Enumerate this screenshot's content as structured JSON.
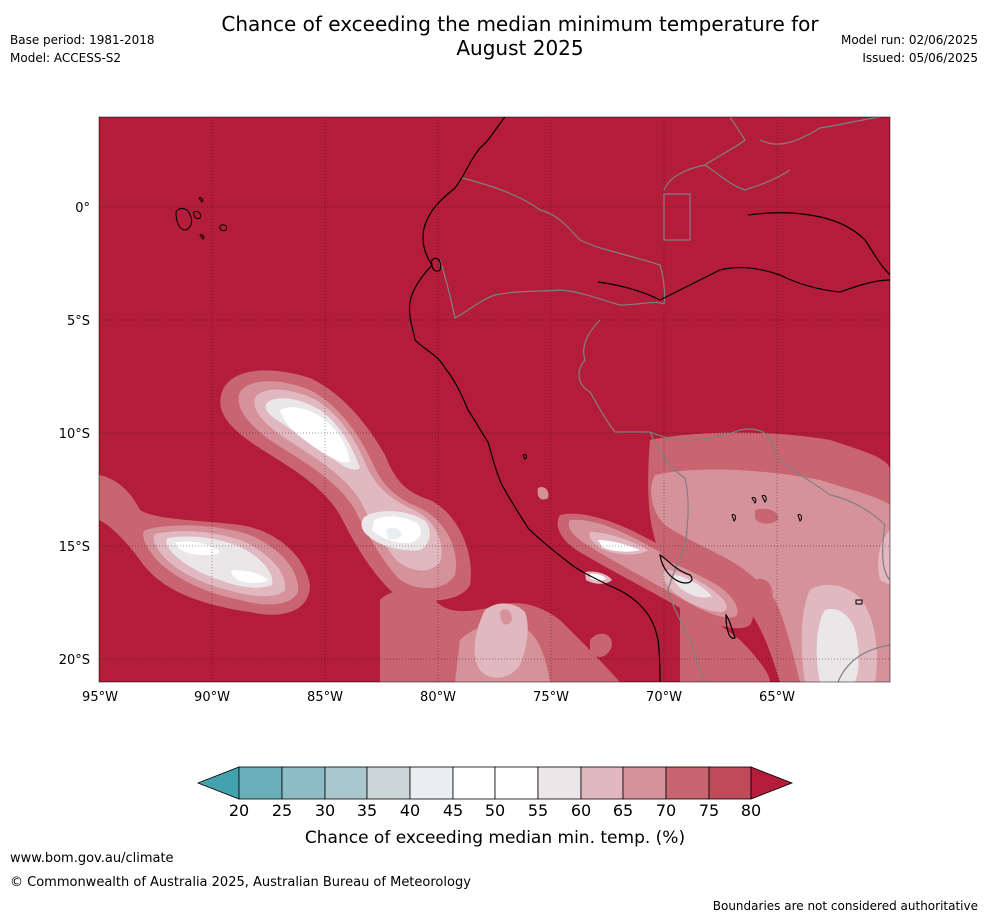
{
  "header": {
    "title_line1": "Chance of exceeding the median minimum temperature for",
    "title_line2": "August 2025",
    "base_period": "Base period: 1981-2018",
    "model": "Model: ACCESS-S2",
    "model_run": "Model run: 02/06/2025",
    "issued": "Issued: 05/06/2025"
  },
  "map": {
    "lat_labels": [
      "0°",
      "5°S",
      "10°S",
      "15°S",
      "20°S"
    ],
    "lon_labels": [
      "95°W",
      "90°W",
      "85°W",
      "80°W",
      "75°W",
      "70°W",
      "65°W"
    ],
    "background_color": "#b31d3a"
  },
  "colorbar": {
    "title": "Chance of exceeding median min. temp. (%)",
    "ticks": [
      "20",
      "25",
      "30",
      "35",
      "40",
      "45",
      "50",
      "55",
      "60",
      "65",
      "70",
      "75",
      "80"
    ],
    "colors": [
      "#42a2ae",
      "#6aaeba",
      "#8dbcc6",
      "#a9c7cc",
      "#cbd6d9",
      "#e9eff1",
      "#ffffff",
      "#ffffff",
      "#ebe7e8",
      "#e1b8bf",
      "#d6929b",
      "#c96570",
      "#bf4a5a",
      "#b31d3a"
    ]
  },
  "footer": {
    "url": "www.bom.gov.au/climate",
    "copyright": "© Commonwealth of Australia 2025, Australian Bureau of Meteorology",
    "note": "Boundaries are not considered authoritative"
  }
}
